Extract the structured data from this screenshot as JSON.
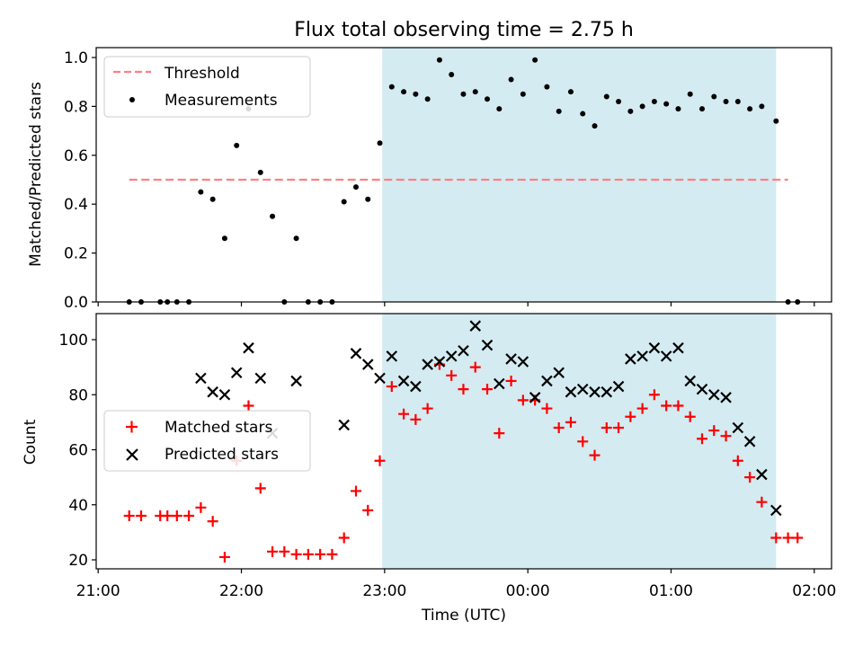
{
  "chart_data": [
    {
      "type": "scatter",
      "title": "Flux total observing time = 2.75 h",
      "xlabel": "",
      "ylabel": "Matched/Predicted stars",
      "ylim": [
        0,
        1.05
      ],
      "yticks": [
        "0.0",
        "0.2",
        "0.4",
        "0.6",
        "0.8",
        "1.0"
      ],
      "grid": false,
      "legend_position": "top-left",
      "shaded_span": {
        "x_start": "22:59",
        "x_end": "01:44"
      },
      "threshold": {
        "name": "Threshold",
        "value": 0.5,
        "x_start": "21:13",
        "x_end": "01:49",
        "color": "#ff8080"
      },
      "series": [
        {
          "name": "Measurements",
          "marker": "dot",
          "color": "#000000",
          "points": [
            [
              "21:13",
              0
            ],
            [
              "21:18",
              0
            ],
            [
              "21:26",
              0
            ],
            [
              "21:29",
              0
            ],
            [
              "21:33",
              0
            ],
            [
              "21:38",
              0
            ],
            [
              "21:43",
              0.45
            ],
            [
              "21:48",
              0.42
            ],
            [
              "21:53",
              0.26
            ],
            [
              "21:58",
              0.64
            ],
            [
              "22:03",
              0.79
            ],
            [
              "22:08",
              0.53
            ],
            [
              "22:13",
              0.35
            ],
            [
              "22:18",
              0
            ],
            [
              "22:23",
              0.26
            ],
            [
              "22:28",
              0
            ],
            [
              "22:33",
              0
            ],
            [
              "22:38",
              0
            ],
            [
              "22:43",
              0.41
            ],
            [
              "22:48",
              0.47
            ],
            [
              "22:53",
              0.42
            ],
            [
              "22:58",
              0.65
            ],
            [
              "23:03",
              0.88
            ],
            [
              "23:08",
              0.86
            ],
            [
              "23:13",
              0.85
            ],
            [
              "23:18",
              0.83
            ],
            [
              "23:23",
              0.99
            ],
            [
              "23:28",
              0.93
            ],
            [
              "23:33",
              0.85
            ],
            [
              "23:38",
              0.86
            ],
            [
              "23:43",
              0.83
            ],
            [
              "23:48",
              0.79
            ],
            [
              "23:53",
              0.91
            ],
            [
              "23:58",
              0.85
            ],
            [
              "00:03",
              0.99
            ],
            [
              "00:08",
              0.88
            ],
            [
              "00:13",
              0.78
            ],
            [
              "00:18",
              0.86
            ],
            [
              "00:23",
              0.77
            ],
            [
              "00:28",
              0.72
            ],
            [
              "00:33",
              0.84
            ],
            [
              "00:38",
              0.82
            ],
            [
              "00:43",
              0.78
            ],
            [
              "00:48",
              0.8
            ],
            [
              "00:53",
              0.82
            ],
            [
              "00:58",
              0.81
            ],
            [
              "01:03",
              0.79
            ],
            [
              "01:08",
              0.85
            ],
            [
              "01:13",
              0.79
            ],
            [
              "01:18",
              0.84
            ],
            [
              "01:23",
              0.82
            ],
            [
              "01:28",
              0.82
            ],
            [
              "01:33",
              0.79
            ],
            [
              "01:38",
              0.8
            ],
            [
              "01:44",
              0.74
            ],
            [
              "01:49",
              0
            ],
            [
              "01:53",
              0
            ]
          ]
        }
      ]
    },
    {
      "type": "scatter",
      "title": "",
      "xlabel": "Time (UTC)",
      "ylabel": "Count",
      "ylim": [
        17,
        109
      ],
      "yticks": [
        "20",
        "40",
        "60",
        "80",
        "100"
      ],
      "xlim": [
        "21:00",
        "02:00"
      ],
      "xticks": [
        "21:00",
        "22:00",
        "23:00",
        "00:00",
        "01:00",
        "02:00"
      ],
      "grid": false,
      "legend_position": "center-left",
      "shaded_span": {
        "x_start": "22:59",
        "x_end": "01:44"
      },
      "series": [
        {
          "name": "Matched stars",
          "marker": "plus",
          "color": "#ff0000",
          "points": [
            [
              "21:13",
              36
            ],
            [
              "21:18",
              36
            ],
            [
              "21:26",
              36
            ],
            [
              "21:29",
              36
            ],
            [
              "21:33",
              36
            ],
            [
              "21:38",
              36
            ],
            [
              "21:43",
              39
            ],
            [
              "21:48",
              34
            ],
            [
              "21:53",
              21
            ],
            [
              "21:58",
              56
            ],
            [
              "22:03",
              76
            ],
            [
              "22:08",
              46
            ],
            [
              "22:13",
              23
            ],
            [
              "22:18",
              23
            ],
            [
              "22:23",
              22
            ],
            [
              "22:28",
              22
            ],
            [
              "22:33",
              22
            ],
            [
              "22:38",
              22
            ],
            [
              "22:43",
              28
            ],
            [
              "22:48",
              45
            ],
            [
              "22:53",
              38
            ],
            [
              "22:58",
              56
            ],
            [
              "23:03",
              83
            ],
            [
              "23:08",
              73
            ],
            [
              "23:13",
              71
            ],
            [
              "23:18",
              75
            ],
            [
              "23:23",
              91
            ],
            [
              "23:28",
              87
            ],
            [
              "23:33",
              82
            ],
            [
              "23:38",
              90
            ],
            [
              "23:43",
              82
            ],
            [
              "23:48",
              66
            ],
            [
              "23:53",
              85
            ],
            [
              "23:58",
              78
            ],
            [
              "00:03",
              78
            ],
            [
              "00:08",
              75
            ],
            [
              "00:13",
              68
            ],
            [
              "00:18",
              70
            ],
            [
              "00:23",
              63
            ],
            [
              "00:28",
              58
            ],
            [
              "00:33",
              68
            ],
            [
              "00:38",
              68
            ],
            [
              "00:43",
              72
            ],
            [
              "00:48",
              75
            ],
            [
              "00:53",
              80
            ],
            [
              "00:58",
              76
            ],
            [
              "01:03",
              76
            ],
            [
              "01:08",
              72
            ],
            [
              "01:13",
              64
            ],
            [
              "01:18",
              67
            ],
            [
              "01:23",
              65
            ],
            [
              "01:28",
              56
            ],
            [
              "01:33",
              50
            ],
            [
              "01:38",
              41
            ],
            [
              "01:44",
              28
            ],
            [
              "01:49",
              28
            ],
            [
              "01:53",
              28
            ]
          ]
        },
        {
          "name": "Predicted stars",
          "marker": "x",
          "color": "#000000",
          "points": [
            [
              "21:43",
              86
            ],
            [
              "21:48",
              81
            ],
            [
              "21:53",
              80
            ],
            [
              "21:58",
              88
            ],
            [
              "22:03",
              97
            ],
            [
              "22:08",
              86
            ],
            [
              "22:13",
              66
            ],
            [
              "22:23",
              85
            ],
            [
              "22:43",
              69
            ],
            [
              "22:48",
              95
            ],
            [
              "22:53",
              91
            ],
            [
              "22:58",
              86
            ],
            [
              "23:03",
              94
            ],
            [
              "23:08",
              85
            ],
            [
              "23:13",
              83
            ],
            [
              "23:18",
              91
            ],
            [
              "23:23",
              92
            ],
            [
              "23:28",
              94
            ],
            [
              "23:33",
              96
            ],
            [
              "23:38",
              105
            ],
            [
              "23:43",
              98
            ],
            [
              "23:48",
              84
            ],
            [
              "23:53",
              93
            ],
            [
              "23:58",
              92
            ],
            [
              "00:03",
              79
            ],
            [
              "00:08",
              85
            ],
            [
              "00:13",
              88
            ],
            [
              "00:18",
              81
            ],
            [
              "00:23",
              82
            ],
            [
              "00:28",
              81
            ],
            [
              "00:33",
              81
            ],
            [
              "00:38",
              83
            ],
            [
              "00:43",
              93
            ],
            [
              "00:48",
              94
            ],
            [
              "00:53",
              97
            ],
            [
              "00:58",
              94
            ],
            [
              "01:03",
              97
            ],
            [
              "01:08",
              85
            ],
            [
              "01:13",
              82
            ],
            [
              "01:18",
              80
            ],
            [
              "01:23",
              79
            ],
            [
              "01:28",
              68
            ],
            [
              "01:33",
              63
            ],
            [
              "01:38",
              51
            ],
            [
              "01:44",
              38
            ]
          ]
        }
      ]
    }
  ]
}
